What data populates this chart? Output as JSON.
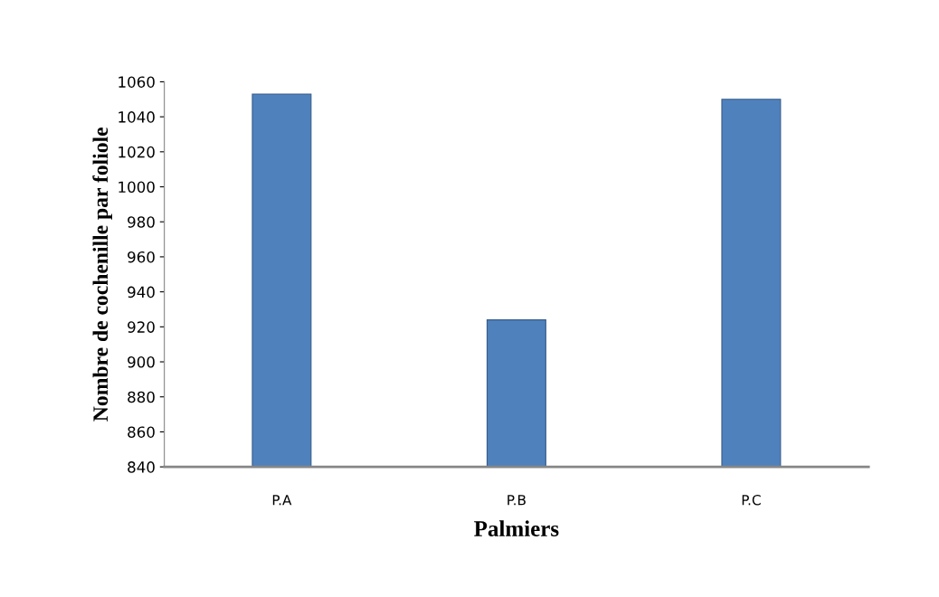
{
  "chart_data": {
    "type": "bar",
    "xlabel": "Palmiers",
    "ylabel": "Nombre de cochenille par foliole",
    "categories": [
      "P.A",
      "P.B",
      "P.C"
    ],
    "values": [
      1053,
      924,
      1050
    ],
    "color": "#4f81bd",
    "ylim": [
      840,
      1060
    ],
    "yticks": [
      840,
      860,
      880,
      900,
      920,
      940,
      960,
      980,
      1000,
      1020,
      1040,
      1060
    ],
    "grid": false
  }
}
